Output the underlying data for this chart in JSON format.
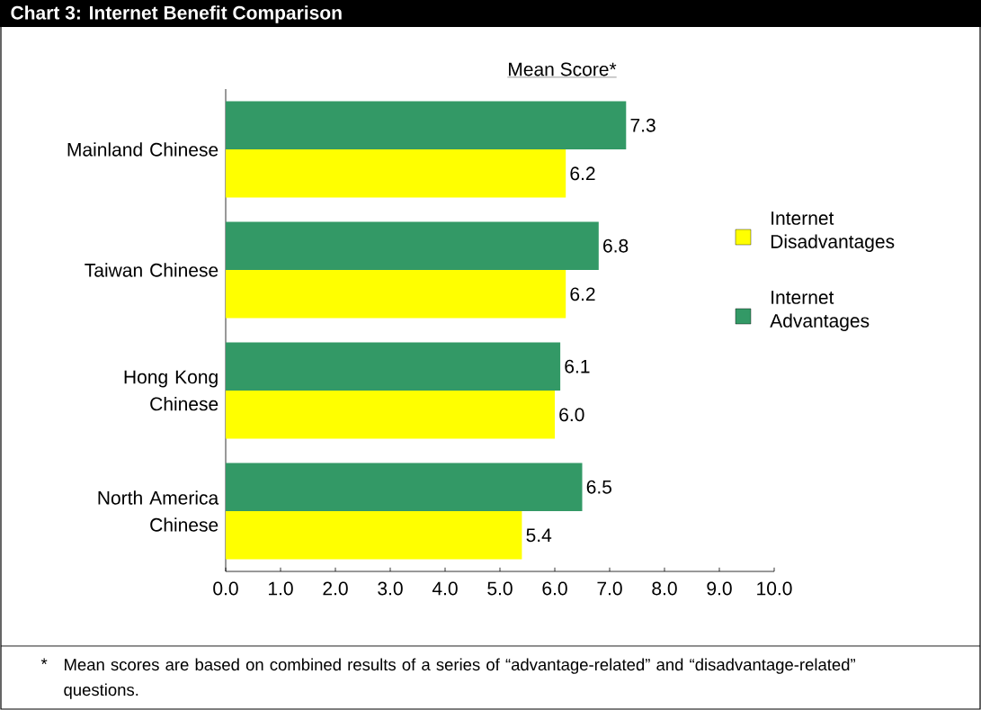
{
  "chart_data": {
    "type": "bar",
    "orientation": "horizontal",
    "title": "Chart 3: Internet Benefit Comparison",
    "subtitle": "Mean Score*",
    "categories": [
      "Mainland Chinese",
      "Taiwan Chinese",
      "Hong Kong Chinese",
      "North America Chinese"
    ],
    "series": [
      {
        "name": "Internet Disadvantages",
        "color": "#ffff00",
        "values": [
          6.2,
          6.2,
          6.0,
          5.4
        ],
        "value_labels": [
          "6.2",
          "6.2",
          "6.0",
          "5.4"
        ]
      },
      {
        "name": "Internet Advantages",
        "color": "#339966",
        "values": [
          7.3,
          6.8,
          6.1,
          6.5
        ],
        "value_labels": [
          "7.3",
          "6.8",
          "6.1",
          "6.5"
        ]
      }
    ],
    "xlim": [
      0,
      10
    ],
    "xticks": [
      {
        "value": 0,
        "label": "0.0"
      },
      {
        "value": 1,
        "label": "1.0"
      },
      {
        "value": 2,
        "label": "2.0"
      },
      {
        "value": 3,
        "label": "3.0"
      },
      {
        "value": 4,
        "label": "4.0"
      },
      {
        "value": 5,
        "label": "5.0"
      },
      {
        "value": 6,
        "label": "6.0"
      },
      {
        "value": 7,
        "label": "7.0"
      },
      {
        "value": 8,
        "label": "8.0"
      },
      {
        "value": 9,
        "label": "9.0"
      },
      {
        "value": 10,
        "label": "10.0"
      }
    ],
    "legend": "right",
    "grid": false,
    "annotations": [
      "*",
      "Mean scores are based on combined results of a series of “advantage-related” and “disadvantage-related” questions."
    ]
  }
}
